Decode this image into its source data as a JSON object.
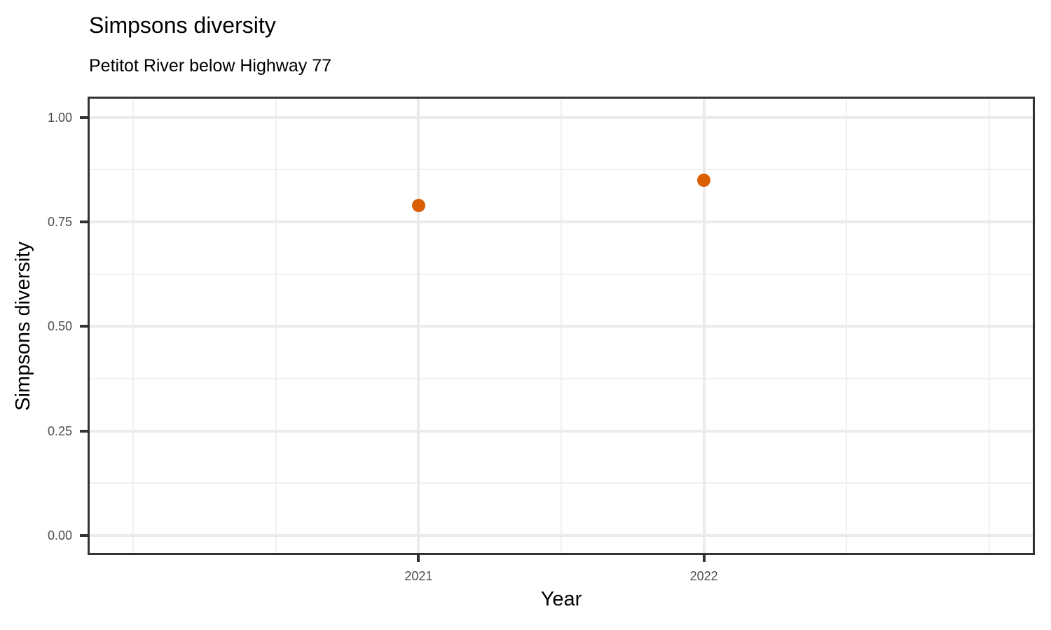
{
  "chart_data": {
    "type": "scatter",
    "title": "Simpsons diversity",
    "subtitle": "Petitot River below Highway 77",
    "xlabel": "Year",
    "ylabel": "Simpsons diversity",
    "points": [
      {
        "x": 2021,
        "y": 0.79
      },
      {
        "x": 2022,
        "y": 0.85
      }
    ],
    "x_ticks": [
      {
        "v": 2021,
        "label": "2021"
      },
      {
        "v": 2022,
        "label": "2022"
      }
    ],
    "y_ticks": [
      {
        "v": 0.0,
        "label": "0.00"
      },
      {
        "v": 0.25,
        "label": "0.25"
      },
      {
        "v": 0.5,
        "label": "0.50"
      },
      {
        "v": 0.75,
        "label": "0.75"
      },
      {
        "v": 1.0,
        "label": "1.00"
      }
    ],
    "xlim": [
      2019.84,
      2023.16
    ],
    "ylim": [
      -0.047,
      1.05
    ],
    "x_grid_major": [
      2021,
      2022
    ],
    "x_grid_minor": [
      2020,
      2020.5,
      2021.5,
      2022.5,
      2023
    ],
    "y_grid_major": [
      0.0,
      0.25,
      0.5,
      0.75,
      1.0
    ],
    "y_grid_minor": [
      0.125,
      0.375,
      0.625,
      0.875
    ],
    "grid": true,
    "legend": "none",
    "colors": {
      "point": "#D95F02",
      "grid_major": "#EBEBEB",
      "grid_minor": "#F0F0F0",
      "panel_border": "#333333",
      "tick": "#333333",
      "axis_text": "#4D4D4D",
      "title_text": "#000000"
    }
  }
}
